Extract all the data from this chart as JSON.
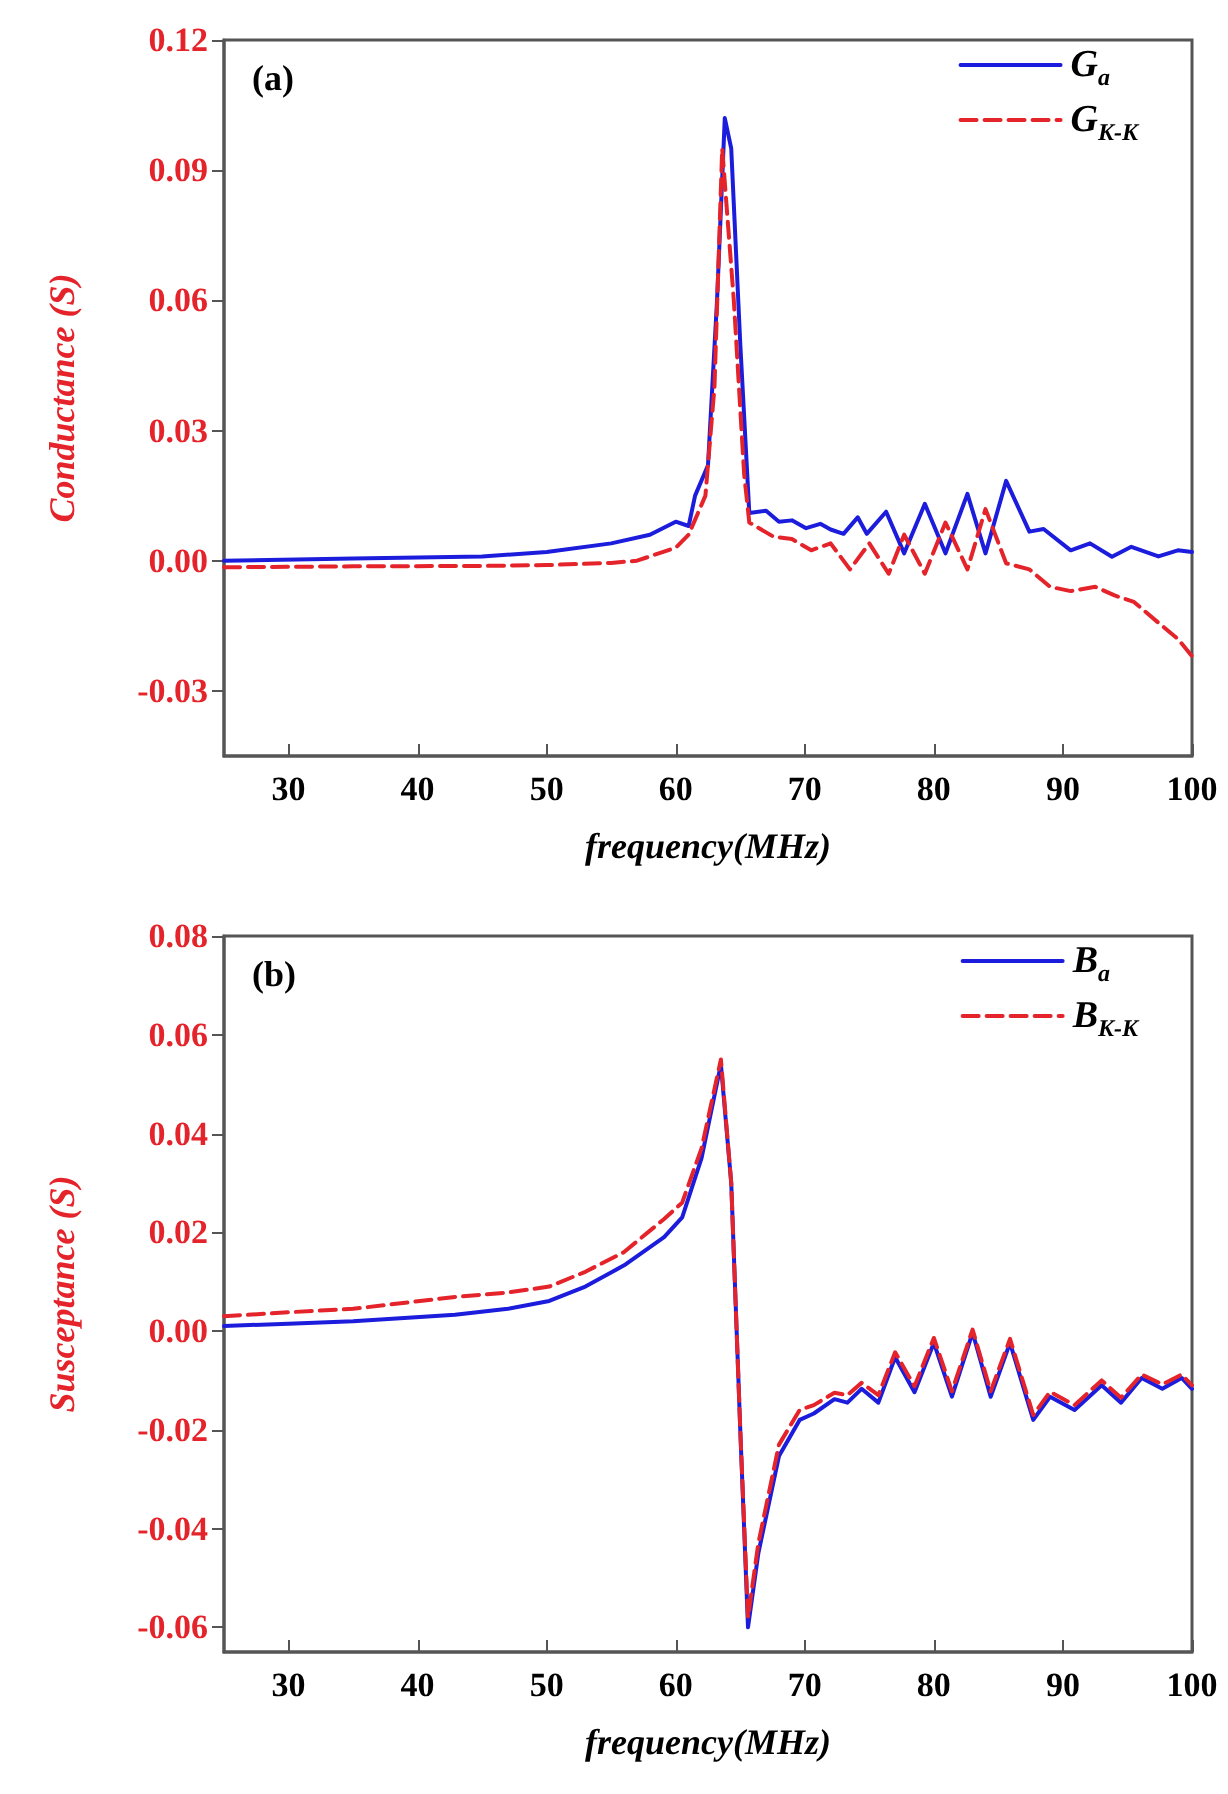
{
  "chart_data": [
    {
      "type": "line",
      "annotations": [
        "(a)"
      ],
      "xlabel": "frequency(MHz)",
      "ylabel": "Conductance (S)",
      "xlim": [
        25,
        100
      ],
      "xticks": [
        30,
        40,
        50,
        60,
        70,
        80,
        90,
        100
      ],
      "ylim": [
        -0.045,
        0.12
      ],
      "yticks": [
        {
          "value": -0.03,
          "label": "-0.03"
        },
        {
          "value": 0,
          "label": "0.00"
        },
        {
          "value": 0.03,
          "label": "0.03"
        },
        {
          "value": 0.06,
          "label": "0.06"
        },
        {
          "value": 0.09,
          "label": "0.09"
        },
        {
          "value": 0.12,
          "label": "0.12"
        }
      ],
      "grid": false,
      "legend": "top right",
      "marker": "none",
      "series": [
        {
          "name": "G$_{a}$",
          "color": "#1c1cdc",
          "line_style": "solid",
          "x": [
            25,
            35,
            45,
            50,
            55,
            58,
            60,
            61,
            61.5,
            62.5,
            63.2,
            63.8,
            64.3,
            65,
            65.7,
            67,
            68,
            69,
            70.1,
            71.2,
            72,
            73,
            74.1,
            74.8,
            76.3,
            77.7,
            79.3,
            80.9,
            82.6,
            84,
            85.6,
            87.4,
            88.5,
            90.6,
            92.1,
            93.8,
            95.3,
            97.4,
            98.9,
            100
          ],
          "values": [
            0,
            0.0005,
            0.001,
            0.002,
            0.004,
            0.006,
            0.009,
            0.008,
            0.015,
            0.022,
            0.06,
            0.102,
            0.095,
            0.05,
            0.011,
            0.0115,
            0.009,
            0.0093,
            0.0075,
            0.0085,
            0.0072,
            0.0062,
            0.01,
            0.0062,
            0.0113,
            0.0017,
            0.0131,
            0.0017,
            0.0154,
            0.0017,
            0.0184,
            0.0067,
            0.0073,
            0.0024,
            0.004,
            0.0009,
            0.0032,
            0.001,
            0.0024,
            0.002
          ]
        },
        {
          "name": "G$_{K-K}$",
          "color": "#e4242a",
          "line_style": "dashed",
          "x": [
            25,
            35,
            45,
            50,
            55,
            57,
            60,
            61,
            62.3,
            63,
            63.6,
            64.5,
            65.3,
            65.7,
            67.6,
            69,
            70.5,
            72,
            73.5,
            75,
            76.5,
            77.7,
            79.3,
            80.9,
            82.6,
            84,
            85.6,
            87.4,
            89,
            90.6,
            92.5,
            94,
            95.5,
            97.4,
            98.9,
            100
          ],
          "values": [
            -0.0015,
            -0.0013,
            -0.0012,
            -0.001,
            -0.0005,
            0,
            0.003,
            0.006,
            0.015,
            0.04,
            0.095,
            0.06,
            0.02,
            0.0088,
            0.0055,
            0.005,
            0.0024,
            0.004,
            -0.002,
            0.004,
            -0.003,
            0.006,
            -0.003,
            0.0088,
            -0.002,
            0.0119,
            -0.0006,
            -0.002,
            -0.006,
            -0.007,
            -0.006,
            -0.008,
            -0.0095,
            -0.0143,
            -0.018,
            -0.022
          ]
        }
      ]
    },
    {
      "type": "line",
      "annotations": [
        "(b)"
      ],
      "xlabel": "frequency(MHz)",
      "ylabel": "Susceptance (S)",
      "xlim": [
        25,
        100
      ],
      "xticks": [
        30,
        40,
        50,
        60,
        70,
        80,
        90,
        100
      ],
      "ylim": [
        -0.065,
        0.08
      ],
      "yticks": [
        {
          "value": -0.06,
          "label": "-0.06"
        },
        {
          "value": -0.04,
          "label": "-0.04"
        },
        {
          "value": -0.02,
          "label": "-0.02"
        },
        {
          "value": 0,
          "label": "0.00"
        },
        {
          "value": 0.02,
          "label": "0.02"
        },
        {
          "value": 0.04,
          "label": "0.04"
        },
        {
          "value": 0.06,
          "label": "0.06"
        },
        {
          "value": 0.08,
          "label": "0.08"
        }
      ],
      "grid": false,
      "legend": "top right",
      "marker": "none",
      "series": [
        {
          "name": "B$_{a}$",
          "color": "#1c1cdc",
          "line_style": "solid",
          "x": [
            25,
            30,
            35,
            42.9,
            47,
            50.2,
            53,
            56,
            59.1,
            60.5,
            62,
            63.5,
            64.3,
            65,
            65.6,
            66.4,
            68,
            69.6,
            70.7,
            72.3,
            73.3,
            74.4,
            75.7,
            77,
            78.5,
            80,
            81.4,
            83,
            84.4,
            85.9,
            87.7,
            89,
            90.9,
            93,
            94.5,
            96.1,
            97.7,
            99.2,
            100
          ],
          "values": [
            0.001,
            0.0015,
            0.002,
            0.0033,
            0.0045,
            0.0061,
            0.009,
            0.0133,
            0.019,
            0.023,
            0.035,
            0.054,
            0.03,
            -0.02,
            -0.06,
            -0.045,
            -0.0253,
            -0.018,
            -0.0167,
            -0.0138,
            -0.0145,
            -0.0117,
            -0.0145,
            -0.0053,
            -0.0124,
            -0.0024,
            -0.0133,
            -0.0003,
            -0.0133,
            -0.0024,
            -0.018,
            -0.0133,
            -0.016,
            -0.011,
            -0.0145,
            -0.0095,
            -0.0117,
            -0.0095,
            -0.0117
          ]
        },
        {
          "name": "B$_{K-K}$",
          "color": "#e4242a",
          "line_style": "dashed",
          "x": [
            25,
            30,
            35,
            42.9,
            47,
            50.2,
            53,
            56,
            59.1,
            60.5,
            62,
            63.5,
            64.3,
            65,
            65.6,
            66.4,
            68,
            69.6,
            70.7,
            72.3,
            73.3,
            74.4,
            75.7,
            77,
            78.5,
            80,
            81.4,
            83,
            84.4,
            85.9,
            87.7,
            89,
            90.9,
            93,
            94.5,
            96.1,
            97.7,
            99.2,
            100
          ],
          "values": [
            0.003,
            0.0038,
            0.0045,
            0.0069,
            0.0078,
            0.009,
            0.012,
            0.016,
            0.0227,
            0.026,
            0.037,
            0.055,
            0.03,
            -0.02,
            -0.058,
            -0.043,
            -0.023,
            -0.016,
            -0.015,
            -0.0125,
            -0.013,
            -0.0105,
            -0.013,
            -0.0043,
            -0.0112,
            -0.0014,
            -0.0122,
            0.0003,
            -0.0122,
            -0.0016,
            -0.017,
            -0.0123,
            -0.015,
            -0.01,
            -0.0135,
            -0.0088,
            -0.0108,
            -0.0088,
            -0.011
          ]
        }
      ]
    }
  ]
}
